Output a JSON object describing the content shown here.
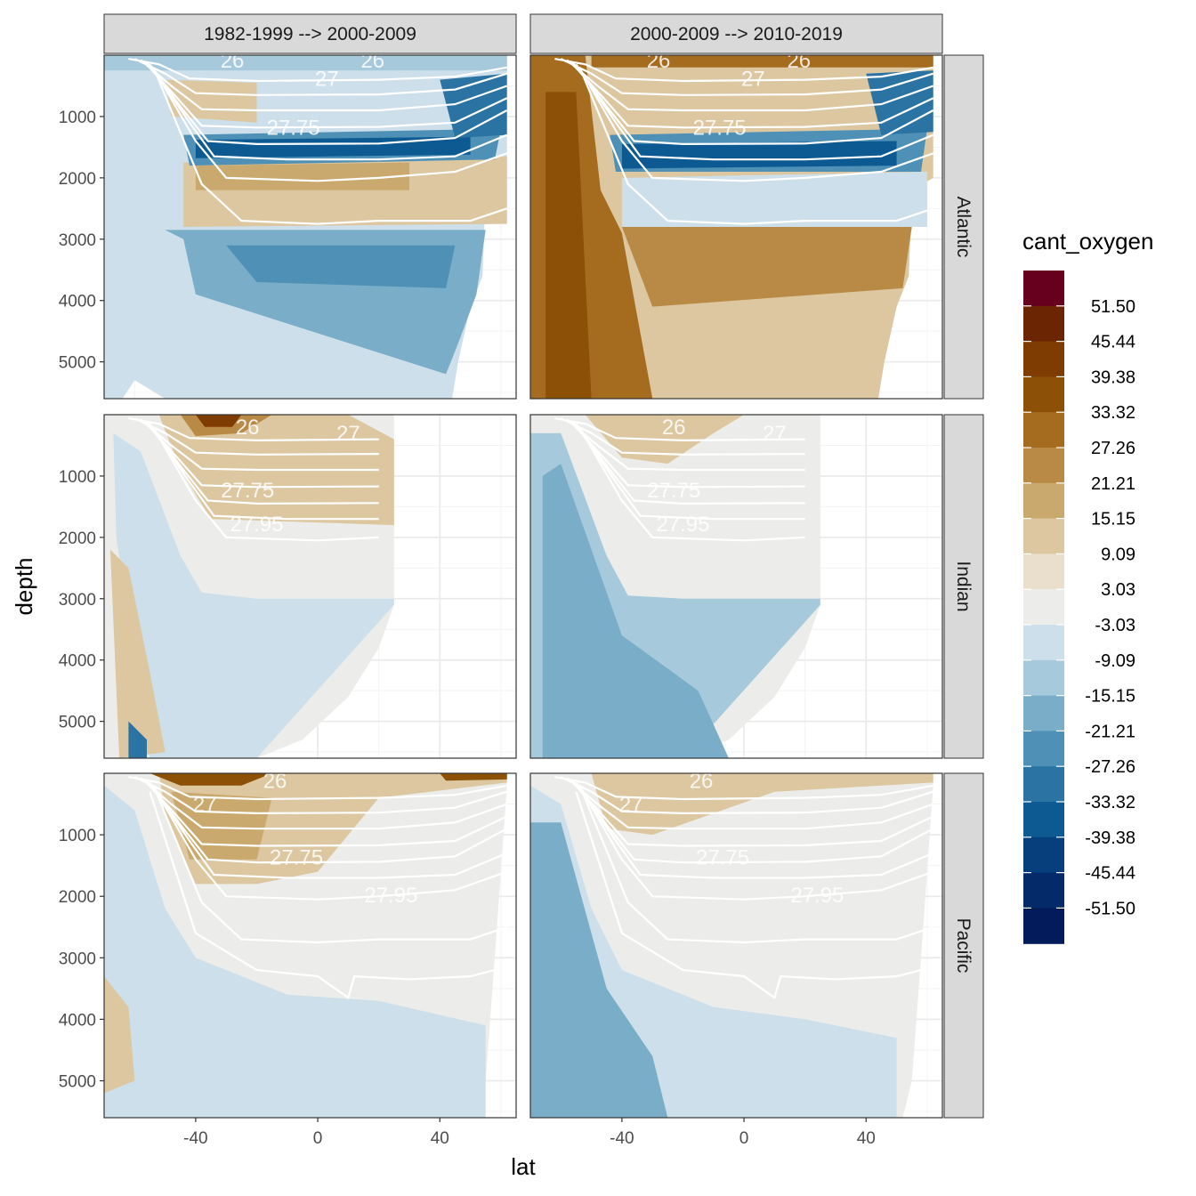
{
  "chart_data": {
    "type": "heatmap",
    "title": "",
    "xlabel": "lat",
    "ylabel": "depth",
    "xlim": [
      -70,
      65
    ],
    "ylim": [
      0,
      5600
    ],
    "x_ticks": [
      "-40",
      "0",
      "40"
    ],
    "x_tick_values": [
      -40,
      0,
      40
    ],
    "y_ticks": [
      "1000",
      "2000",
      "3000",
      "4000",
      "5000"
    ],
    "y_tick_values": [
      1000,
      2000,
      3000,
      4000,
      5000
    ],
    "column_facets": [
      "1982-1999 --> 2000-2009",
      "2000-2009 --> 2010-2019"
    ],
    "row_facets": [
      "Atlantic",
      "Indian",
      "Pacific"
    ],
    "fill_variable": "cant_oxygen",
    "legend": {
      "title": "cant_oxygen",
      "labels": [
        "51.50",
        "45.44",
        "39.38",
        "33.32",
        "27.26",
        "21.21",
        "15.15",
        "9.09",
        "3.03",
        "-3.03",
        "-9.09",
        "-15.15",
        "-21.21",
        "-27.26",
        "-33.32",
        "-39.38",
        "-45.44",
        "-51.50"
      ],
      "colors": [
        "#67001f",
        "#6b2503",
        "#7f3c02",
        "#8c5106",
        "#a56b1f",
        "#b98a45",
        "#c9a96e",
        "#dcc7a0",
        "#eadfcd",
        "#ecedea",
        "#cddfea",
        "#a7c9dc",
        "#7aadc8",
        "#4f91b6",
        "#2a73a3",
        "#0d5a92",
        "#073f7d",
        "#042a6a",
        "#031a5b"
      ]
    },
    "isopycnal_labels": {
      "Atlantic": [
        "26",
        "26",
        "27",
        "27.75"
      ],
      "Indian": [
        "26",
        "27",
        "27.75",
        "27.95"
      ],
      "Pacific": [
        "26",
        "27",
        "27.75",
        "27.95"
      ]
    },
    "panels": [
      {
        "row": "Atlantic",
        "col": "1982-1999 --> 2000-2009",
        "summary": "surface negative, deep negative ~-20 below 3000 m, positive 1800-2800 m"
      },
      {
        "row": "Atlantic",
        "col": "2000-2009 --> 2010-2019",
        "summary": "strong positive (up to ~33) south of -40, positive 2800-4000 m"
      },
      {
        "row": "Indian",
        "col": "1982-1999 --> 2000-2009",
        "summary": "strongly positive near surface at -40, weak negative at depth"
      },
      {
        "row": "Indian",
        "col": "2000-2009 --> 2010-2019",
        "summary": "weak positive near surface, negative ~-12 in deep south"
      },
      {
        "row": "Pacific",
        "col": "1982-1999 --> 2000-2009",
        "summary": "positive surface, weak negative at depth"
      },
      {
        "row": "Pacific",
        "col": "2000-2009 --> 2010-2019",
        "summary": "weak positive surface, negative ~-12 in deep south"
      }
    ]
  }
}
